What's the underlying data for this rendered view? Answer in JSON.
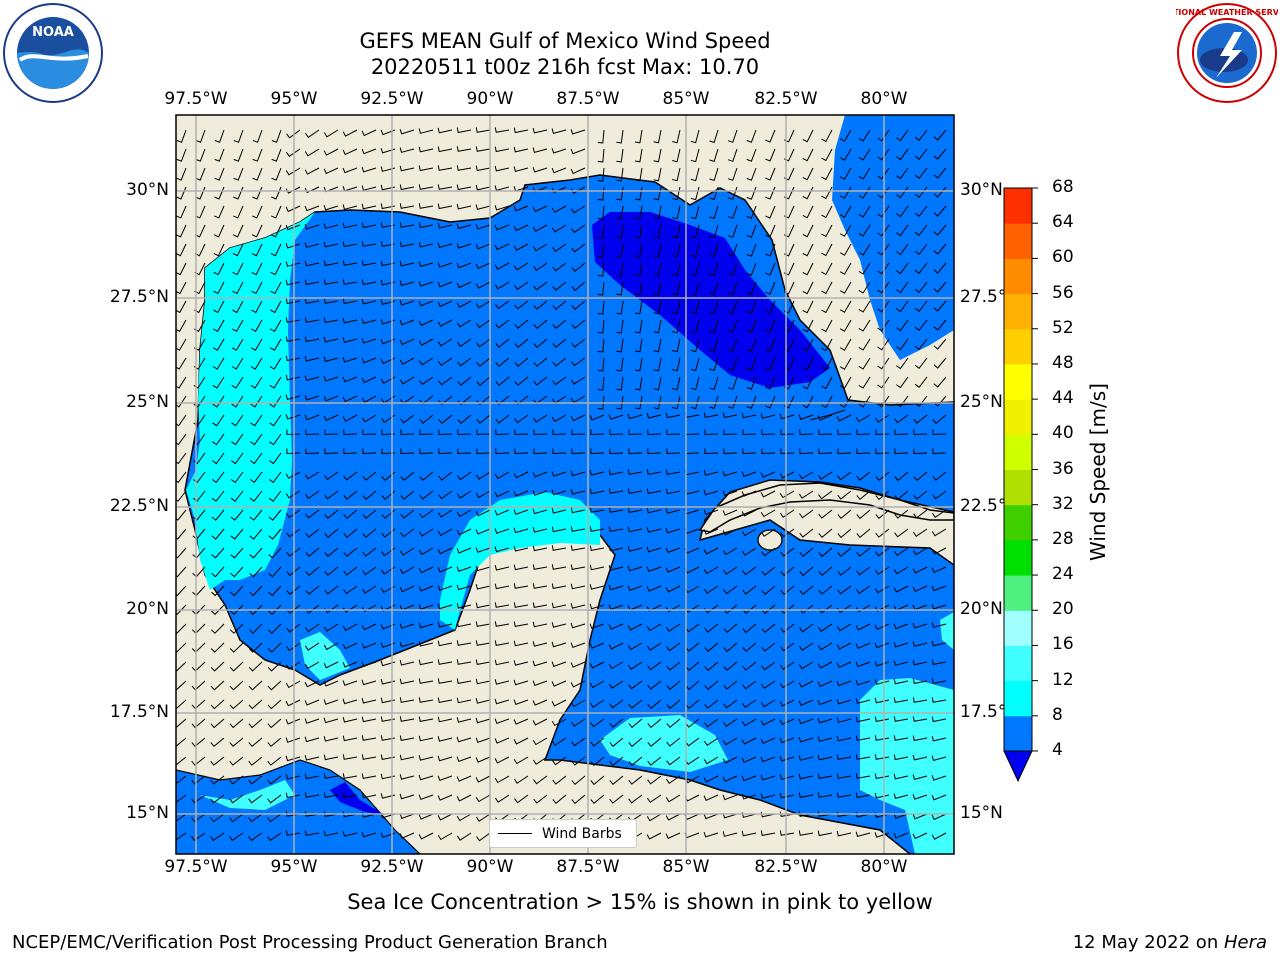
{
  "title": {
    "line1": "GEFS MEAN Gulf of Mexico Wind Speed",
    "line2": "20220511 t00z 216h fcst   Max: 10.70"
  },
  "map": {
    "lon_labels": [
      "97.5°W",
      "95°W",
      "92.5°W",
      "90°W",
      "87.5°W",
      "85°W",
      "82.5°W",
      "80°W"
    ],
    "lat_labels": [
      "30°N",
      "27.5°N",
      "25°N",
      "22.5°N",
      "20°N",
      "17.5°N",
      "15°N"
    ],
    "legend_label": "Wind Barbs",
    "land_color": "#efecdc",
    "grid_color": "#b0b0b0"
  },
  "colorbar": {
    "title": "Wind Speed [m/s]",
    "levels": [
      "4",
      "8",
      "12",
      "16",
      "20",
      "24",
      "28",
      "32",
      "36",
      "40",
      "44",
      "48",
      "52",
      "56",
      "60",
      "64",
      "68"
    ],
    "colors": [
      "#0077ff",
      "#00ffff",
      "#40ffff",
      "#a0ffff",
      "#50f080",
      "#00e000",
      "#40d000",
      "#b0e000",
      "#d0ff00",
      "#f0f000",
      "#ffff00",
      "#ffd000",
      "#ffb000",
      "#ff8c00",
      "#ff6000",
      "#ff3000"
    ],
    "extend_color": "#0000ee"
  },
  "caption": "Sea Ice Concentration > 15% is shown in pink to yellow",
  "footer": {
    "left": "NCEP/EMC/Verification Post Processing Product Generation Branch",
    "right_date": "12 May 2022 on ",
    "right_host": "Hera"
  },
  "logos": {
    "noaa_text": "NOAA",
    "nws_text": "NATIONAL WEATHER SERVICE"
  }
}
